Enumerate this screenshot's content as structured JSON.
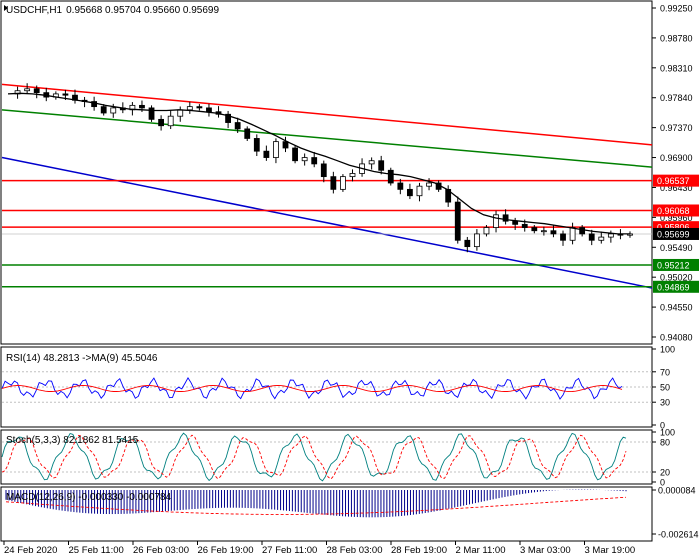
{
  "header": {
    "symbol": "USDCHF,H1",
    "ohlc": "0.95668 0.95704 0.95660 0.95699"
  },
  "colors": {
    "red": "#ff0000",
    "green": "#008000",
    "blue": "#0000cc",
    "ma": "#000000",
    "candle_up": "#ffffff",
    "candle_down": "#000000",
    "price_label_bg_red": "#ff0000",
    "price_label_bg_green": "#008000",
    "price_label_bg_current": "#000000",
    "rsi_line": "#0000ff",
    "rsi_ma": "#ff0000",
    "stoch_main": "#008080",
    "stoch_signal": "#ff0000",
    "macd_hist": "#00008b",
    "macd_signal": "#ff0000"
  },
  "chart_data": [
    {
      "type": "candlestick",
      "title": "USDCHF,H1",
      "ylim": [
        0.9408,
        0.9925
      ],
      "y_ticks": [
        "0.99250",
        "0.98780",
        "0.98310",
        "0.97840",
        "0.97370",
        "0.96900",
        "0.96430",
        "0.95960",
        "0.95490",
        "0.95020",
        "0.94550",
        "0.94080"
      ],
      "x_ticks": [
        "24 Feb 2020",
        "25 Feb 11:00",
        "26 Feb 03:00",
        "26 Feb 19:00",
        "27 Feb 11:00",
        "28 Feb 03:00",
        "28 Feb 19:00",
        "2 Mar 11:00",
        "3 Mar 03:00",
        "3 Mar 19:00"
      ],
      "close_path": [
        0.979,
        0.9795,
        0.9798,
        0.9792,
        0.9785,
        0.979,
        0.9788,
        0.978,
        0.9778,
        0.977,
        0.976,
        0.9768,
        0.9765,
        0.9772,
        0.9768,
        0.975,
        0.974,
        0.9755,
        0.9765,
        0.977,
        0.9768,
        0.9762,
        0.9758,
        0.9745,
        0.9735,
        0.972,
        0.97,
        0.969,
        0.9715,
        0.9705,
        0.9685,
        0.969,
        0.968,
        0.966,
        0.964,
        0.966,
        0.9665,
        0.968,
        0.9685,
        0.967,
        0.965,
        0.964,
        0.963,
        0.9645,
        0.965,
        0.964,
        0.962,
        0.956,
        0.955,
        0.957,
        0.958,
        0.96,
        0.959,
        0.9585,
        0.958,
        0.9575,
        0.9575,
        0.957,
        0.956,
        0.958,
        0.957,
        0.956,
        0.9565,
        0.957,
        0.9568,
        0.957
      ],
      "moving_average": [
        0.979,
        0.9791,
        0.979,
        0.9788,
        0.9785,
        0.9782,
        0.9779,
        0.9776,
        0.9772,
        0.9769,
        0.9766,
        0.9765,
        0.9764,
        0.9764,
        0.9765,
        0.9764,
        0.9762,
        0.976,
        0.9756,
        0.975,
        0.9742,
        0.9733,
        0.9724,
        0.9714,
        0.9705,
        0.9698,
        0.9692,
        0.9685,
        0.9678,
        0.9673,
        0.9668,
        0.9665,
        0.9663,
        0.966,
        0.9655,
        0.965,
        0.964,
        0.9625,
        0.961,
        0.96,
        0.9595,
        0.9592,
        0.959,
        0.9588,
        0.9586,
        0.9583,
        0.958,
        0.9577,
        0.9574,
        0.9572,
        0.957,
        0.957
      ],
      "horizontal_levels": [
        {
          "price": 0.96537,
          "label": "0.96537",
          "color": "#ff0000"
        },
        {
          "price": 0.96068,
          "label": "0.96068",
          "color": "#ff0000"
        },
        {
          "price": 0.95806,
          "label": "0.95806",
          "color": "#ff0000"
        },
        {
          "price": 0.95212,
          "label": "0.95212",
          "color": "#008000"
        },
        {
          "price": 0.94869,
          "label": "0.94869",
          "color": "#008000"
        }
      ],
      "current_price": {
        "price": 0.95699,
        "label": "0.95699"
      },
      "trend_lines": [
        {
          "color": "#ff0000",
          "from": [
            0,
            0.9805
          ],
          "to": [
            1,
            0.971
          ]
        },
        {
          "color": "#008000",
          "from": [
            0,
            0.9765
          ],
          "to": [
            1,
            0.9675
          ]
        },
        {
          "color": "#0000cc",
          "from": [
            0,
            0.969
          ],
          "to": [
            1,
            0.9485
          ]
        }
      ]
    },
    {
      "type": "line",
      "title": "RSI(14) 48.2813  ->MA(9) 45.5046",
      "ylim": [
        0,
        100
      ],
      "y_ticks": [
        "100",
        "70",
        "50",
        "30",
        "0"
      ],
      "rsi": 48.2813,
      "ma": 45.5046
    },
    {
      "type": "line",
      "title": "Stoch(5,3,3) 82.1862 81.5415",
      "ylim": [
        0,
        100
      ],
      "y_ticks": [
        "100",
        "80",
        "20",
        "0"
      ],
      "main": 82.1862,
      "signal": 81.5415
    },
    {
      "type": "bar",
      "title": "MACD(12,26,9) -0.000330 -0.000784",
      "y_ticks": [
        "0.000084",
        "-0.002614"
      ],
      "macd": -0.00033,
      "signal": -0.000784
    }
  ]
}
